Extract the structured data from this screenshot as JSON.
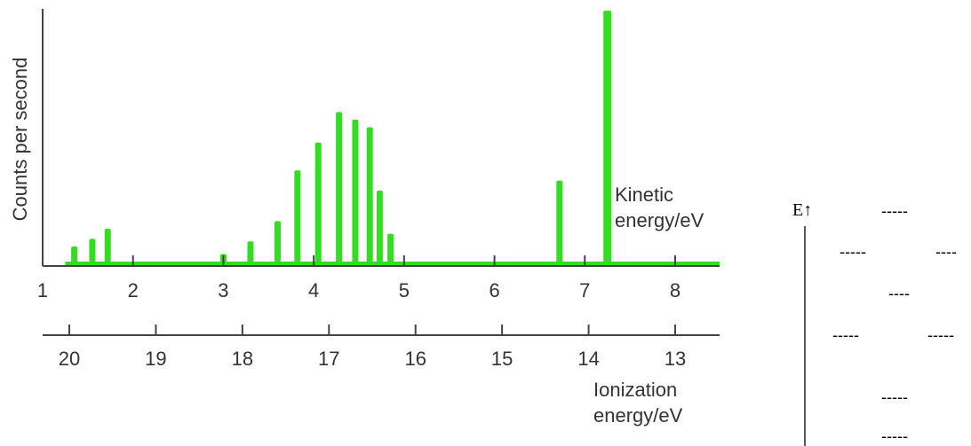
{
  "chart_data": {
    "type": "bar",
    "ylabel": "Counts per second",
    "kinetic_axis": {
      "label_line1": "Kinetic",
      "label_line2": "energy/eV",
      "range": [
        1,
        8.5
      ],
      "ticks": [
        "1",
        "2",
        "3",
        "4",
        "5",
        "6",
        "7",
        "8"
      ],
      "tick_values": [
        1,
        2,
        3,
        4,
        5,
        6,
        7,
        8
      ]
    },
    "ionization_axis": {
      "label_line1": "Ionization",
      "label_line2": "energy/eV",
      "range": [
        20.5,
        12.5
      ],
      "ticks": [
        "20",
        "19",
        "18",
        "17",
        "16",
        "15",
        "14",
        "13"
      ],
      "tick_values": [
        20,
        19,
        18,
        17,
        16,
        15,
        14,
        13
      ]
    },
    "ylim": [
      0,
      100
    ],
    "color": "#33dd22",
    "peaks": [
      {
        "x": 1.35,
        "y": 7
      },
      {
        "x": 1.55,
        "y": 10
      },
      {
        "x": 1.72,
        "y": 14
      },
      {
        "x": 3.0,
        "y": 4
      },
      {
        "x": 3.3,
        "y": 9
      },
      {
        "x": 3.6,
        "y": 17
      },
      {
        "x": 3.82,
        "y": 37
      },
      {
        "x": 4.05,
        "y": 48
      },
      {
        "x": 4.28,
        "y": 60
      },
      {
        "x": 4.46,
        "y": 57
      },
      {
        "x": 4.62,
        "y": 54
      },
      {
        "x": 4.73,
        "y": 29
      },
      {
        "x": 4.85,
        "y": 12
      },
      {
        "x": 6.72,
        "y": 33
      },
      {
        "x": 7.25,
        "y": 100
      }
    ]
  },
  "diagram": {
    "axis_label": "E↑",
    "levels": [
      "-----",
      "-----",
      "----",
      "----",
      "-----",
      "-----",
      "-----",
      "-----"
    ]
  }
}
